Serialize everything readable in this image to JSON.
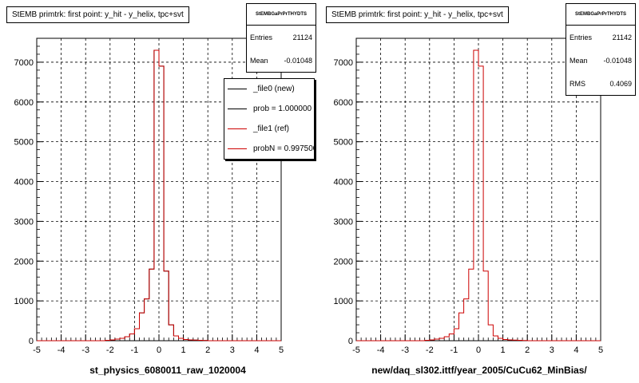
{
  "chart_data": [
    {
      "type": "bar",
      "title": "StEMB primtrk: first point: y_hit - y_helix, tpc+svt",
      "xlabel": "st_physics_6080011_raw_1020004",
      "ylabel": "",
      "xlim": [
        -5,
        5
      ],
      "ylim": [
        0,
        7600
      ],
      "grid": true,
      "x_ticks": [
        "-5",
        "-4",
        "-3",
        "-2",
        "-1",
        "0",
        "1",
        "2",
        "3",
        "4",
        "5"
      ],
      "y_ticks": [
        "0",
        "1000",
        "2000",
        "3000",
        "4000",
        "5000",
        "6000",
        "7000"
      ],
      "bin_edges": [
        -5.0,
        -4.8,
        -4.6,
        -4.4,
        -4.2,
        -4.0,
        -3.8,
        -3.6,
        -3.4,
        -3.2,
        -3.0,
        -2.8,
        -2.6,
        -2.4,
        -2.2,
        -2.0,
        -1.8,
        -1.6,
        -1.4,
        -1.2,
        -1.0,
        -0.8,
        -0.6,
        -0.4,
        -0.2,
        0.0,
        0.2,
        0.4,
        0.6,
        0.8,
        1.0,
        1.2,
        1.4,
        1.6,
        1.8,
        2.0,
        2.2,
        2.4,
        2.6,
        2.8,
        3.0,
        3.2,
        3.4,
        3.6,
        3.8,
        4.0,
        4.2,
        4.4,
        4.6,
        4.8,
        5.0
      ],
      "series": [
        {
          "name": "_file0 (new)",
          "color": "#000000",
          "values": [
            0,
            0,
            0,
            0,
            0,
            0,
            0,
            0,
            0,
            0,
            0,
            0,
            0,
            0,
            10,
            20,
            40,
            60,
            100,
            170,
            300,
            700,
            1050,
            1800,
            7300,
            6900,
            1750,
            400,
            120,
            60,
            30,
            20,
            15,
            10,
            5,
            0,
            0,
            0,
            0,
            0,
            0,
            0,
            0,
            0,
            0,
            0,
            0,
            0,
            0,
            0
          ]
        },
        {
          "name": "_file1 (ref)",
          "color": "#cc0000",
          "values": [
            0,
            0,
            0,
            0,
            0,
            0,
            0,
            0,
            0,
            0,
            0,
            0,
            0,
            0,
            10,
            20,
            40,
            60,
            100,
            170,
            300,
            700,
            1050,
            1800,
            7300,
            6900,
            1750,
            400,
            120,
            60,
            30,
            20,
            15,
            10,
            5,
            0,
            0,
            0,
            0,
            0,
            0,
            0,
            0,
            0,
            0,
            0,
            0,
            0,
            0,
            0
          ]
        }
      ],
      "stats": {
        "title": "StEMBGaPrPrTHYDTS",
        "rows": [
          {
            "label": "Entries",
            "value": "21124"
          },
          {
            "label": "Mean",
            "value": "-0.01048"
          }
        ]
      },
      "legend": [
        {
          "label": "_file0 (new)",
          "color": "#000000"
        },
        {
          "label": "prob = 1.000000",
          "color": "#000000"
        },
        {
          "label": "_file1 (ref)",
          "color": "#cc0000"
        },
        {
          "label": "probN = 0.997500",
          "color": "#cc0000"
        }
      ]
    },
    {
      "type": "bar",
      "title": "StEMB primtrk: first point: y_hit - y_helix, tpc+svt",
      "xlabel": "new/daq_sl302.ittf/year_2005/CuCu62_MinBias/",
      "ylabel": "",
      "xlim": [
        -5,
        5
      ],
      "ylim": [
        0,
        7600
      ],
      "grid": true,
      "x_ticks": [
        "-5",
        "-4",
        "-3",
        "-2",
        "-1",
        "0",
        "1",
        "2",
        "3",
        "4",
        "5"
      ],
      "y_ticks": [
        "0",
        "1000",
        "2000",
        "3000",
        "4000",
        "5000",
        "6000",
        "7000"
      ],
      "bin_edges": [
        -5.0,
        -4.8,
        -4.6,
        -4.4,
        -4.2,
        -4.0,
        -3.8,
        -3.6,
        -3.4,
        -3.2,
        -3.0,
        -2.8,
        -2.6,
        -2.4,
        -2.2,
        -2.0,
        -1.8,
        -1.6,
        -1.4,
        -1.2,
        -1.0,
        -0.8,
        -0.6,
        -0.4,
        -0.2,
        0.0,
        0.2,
        0.4,
        0.6,
        0.8,
        1.0,
        1.2,
        1.4,
        1.6,
        1.8,
        2.0,
        2.2,
        2.4,
        2.6,
        2.8,
        3.0,
        3.2,
        3.4,
        3.6,
        3.8,
        4.0,
        4.2,
        4.4,
        4.6,
        4.8,
        5.0
      ],
      "series": [
        {
          "name": "",
          "color": "#cc0000",
          "values": [
            0,
            0,
            0,
            0,
            0,
            0,
            0,
            0,
            0,
            0,
            0,
            0,
            0,
            0,
            10,
            20,
            40,
            60,
            100,
            170,
            300,
            700,
            1050,
            1800,
            7300,
            6900,
            1750,
            400,
            120,
            60,
            30,
            20,
            15,
            10,
            5,
            0,
            0,
            0,
            0,
            0,
            0,
            0,
            0,
            0,
            0,
            0,
            0,
            0,
            0,
            0
          ]
        }
      ],
      "stats": {
        "title": "StEMBGaPrPrTHYDTS",
        "rows": [
          {
            "label": "Entries",
            "value": "21142"
          },
          {
            "label": "Mean",
            "value": "-0.01048"
          },
          {
            "label": "RMS",
            "value": "0.4069"
          }
        ]
      }
    }
  ]
}
